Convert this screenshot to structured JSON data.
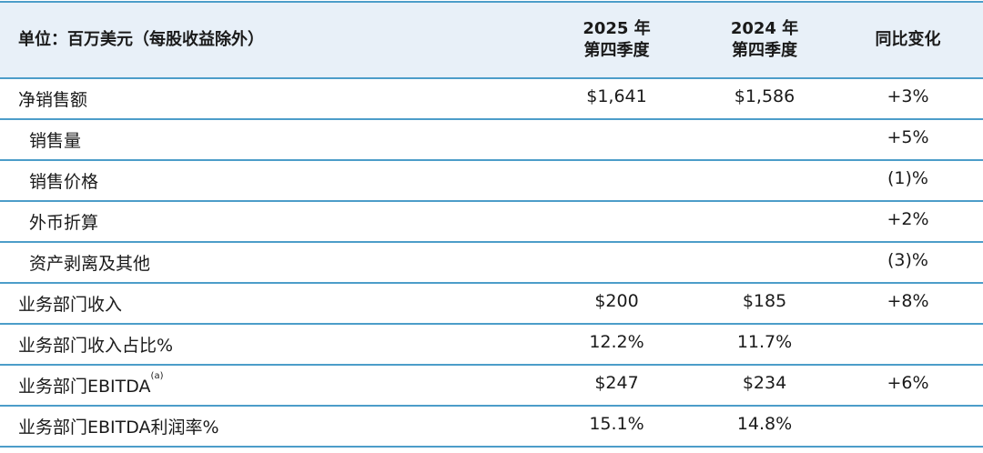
{
  "header": {
    "unit_label": "单位：百万美元（每股收益除外）",
    "col_2025": [
      "2025 年",
      "第四季度"
    ],
    "col_2024": [
      "2024 年",
      "第四季度"
    ],
    "col_change": "同比变化"
  },
  "rows": [
    {
      "label": "净销售额",
      "sub": false,
      "v2025": "$1,641",
      "v2024": "$1,586",
      "change": "+3%"
    },
    {
      "label": "销售量",
      "sub": true,
      "v2025": "",
      "v2024": "",
      "change": "+5%"
    },
    {
      "label": "销售价格",
      "sub": true,
      "v2025": "",
      "v2024": "",
      "change": "(1)%"
    },
    {
      "label": "外币折算",
      "sub": true,
      "v2025": "",
      "v2024": "",
      "change": "+2%"
    },
    {
      "label": "资产剥离及其他",
      "sub": true,
      "v2025": "",
      "v2024": "",
      "change": "(3)%"
    },
    {
      "label": "业务部门收入",
      "sub": false,
      "v2025": "$200",
      "v2024": "$185",
      "change": "+8%"
    },
    {
      "label": "业务部门收入占比%",
      "sub": false,
      "v2025": "12.2%",
      "v2024": "11.7%",
      "change": ""
    },
    {
      "label": "业务部门EBITDA",
      "footnote": "(a)",
      "sub": false,
      "v2025": "$247",
      "v2024": "$234",
      "change": "+6%"
    },
    {
      "label": "业务部门EBITDA利润率%",
      "sub": false,
      "v2025": "15.1%",
      "v2024": "14.8%",
      "change": ""
    }
  ],
  "colors": {
    "header_bg": "#e8f0f8",
    "rule": "#4c9dc9"
  }
}
